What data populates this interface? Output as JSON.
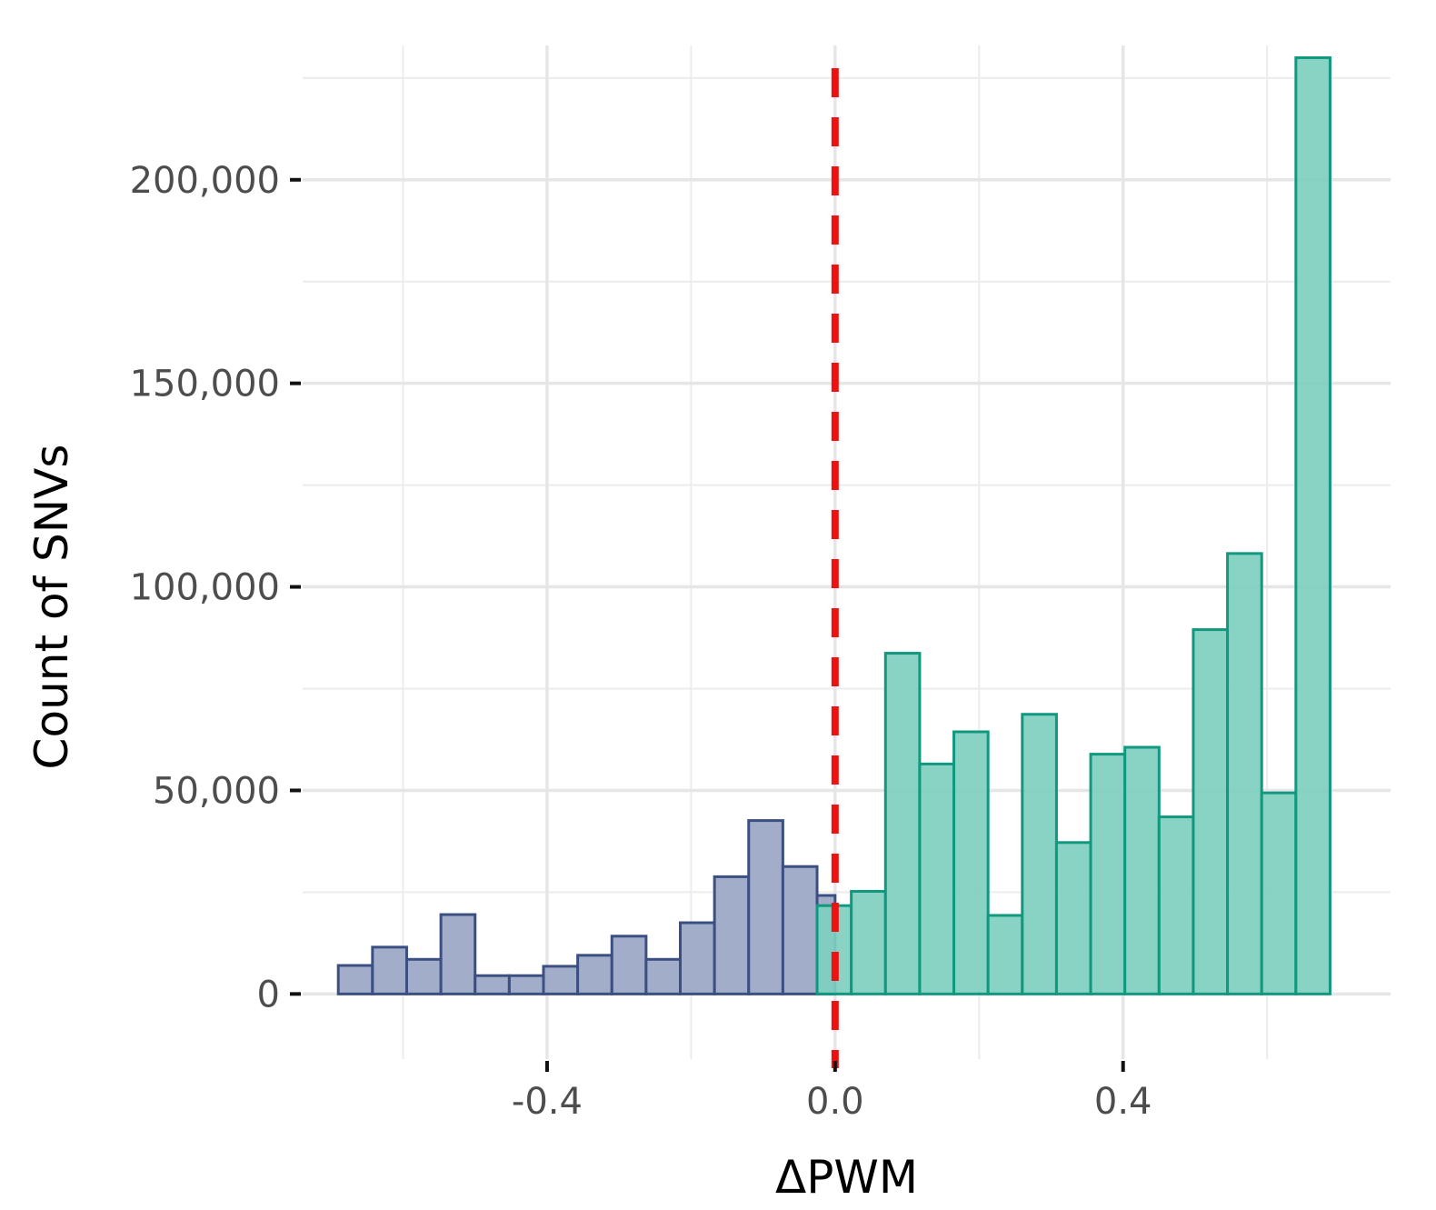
{
  "chart_data": {
    "type": "bar",
    "subtype": "histogram",
    "title": "",
    "xlabel": "ΔPWM",
    "ylabel": "Count of SNVs",
    "xlim": [
      -0.7395,
      0.7715
    ],
    "ylim": [
      -16000,
      233000
    ],
    "x_ticks": [
      -0.4,
      0.0,
      0.4
    ],
    "x_tick_labels": [
      "-0.4",
      "0.0",
      "0.4"
    ],
    "y_ticks": [
      0,
      50000,
      100000,
      150000,
      200000
    ],
    "y_tick_labels": [
      "0",
      "50,000",
      "100,000",
      "150,000",
      "200,000"
    ],
    "grid": true,
    "reference_line": {
      "x": 0.0,
      "style": "dashed",
      "color": "#ee1111"
    },
    "series": [
      {
        "fill": "#9aa7c4",
        "stroke": "#3b4f82",
        "bins": [
          {
            "x0": -0.69,
            "x1": -0.6425,
            "count": 7000
          },
          {
            "x0": -0.6425,
            "x1": -0.595,
            "count": 11500
          },
          {
            "x0": -0.595,
            "x1": -0.5475,
            "count": 8500
          },
          {
            "x0": -0.5475,
            "x1": -0.5,
            "count": 19500
          },
          {
            "x0": -0.5,
            "x1": -0.4525,
            "count": 4500
          },
          {
            "x0": -0.4525,
            "x1": -0.405,
            "count": 4500
          },
          {
            "x0": -0.405,
            "x1": -0.3575,
            "count": 6800
          },
          {
            "x0": -0.3575,
            "x1": -0.31,
            "count": 9500
          },
          {
            "x0": -0.31,
            "x1": -0.2625,
            "count": 14200
          },
          {
            "x0": -0.2625,
            "x1": -0.215,
            "count": 8500
          },
          {
            "x0": -0.215,
            "x1": -0.1675,
            "count": 17500
          },
          {
            "x0": -0.1675,
            "x1": -0.12,
            "count": 28800
          },
          {
            "x0": -0.12,
            "x1": -0.0725,
            "count": 42600
          },
          {
            "x0": -0.0725,
            "x1": -0.025,
            "count": 31300
          },
          {
            "x0": -0.025,
            "x1": 0.0,
            "count": 24200
          }
        ]
      },
      {
        "fill": "#7fcfc0",
        "stroke": "#10997f",
        "bins": [
          {
            "x0": -0.025,
            "x1": 0.0225,
            "count": 21700
          },
          {
            "x0": 0.0225,
            "x1": 0.07,
            "count": 25200
          },
          {
            "x0": 0.07,
            "x1": 0.1175,
            "count": 83700
          },
          {
            "x0": 0.1175,
            "x1": 0.165,
            "count": 56500
          },
          {
            "x0": 0.165,
            "x1": 0.2125,
            "count": 64400
          },
          {
            "x0": 0.2125,
            "x1": 0.26,
            "count": 19300
          },
          {
            "x0": 0.26,
            "x1": 0.3075,
            "count": 68700
          },
          {
            "x0": 0.3075,
            "x1": 0.355,
            "count": 37200
          },
          {
            "x0": 0.355,
            "x1": 0.4025,
            "count": 58900
          },
          {
            "x0": 0.4025,
            "x1": 0.45,
            "count": 60600
          },
          {
            "x0": 0.45,
            "x1": 0.4975,
            "count": 43500
          },
          {
            "x0": 0.4975,
            "x1": 0.545,
            "count": 89500
          },
          {
            "x0": 0.545,
            "x1": 0.5925,
            "count": 108200
          },
          {
            "x0": 0.5925,
            "x1": 0.64,
            "count": 49400
          },
          {
            "x0": 0.64,
            "x1": 0.6875,
            "count": 230000
          }
        ]
      }
    ]
  }
}
